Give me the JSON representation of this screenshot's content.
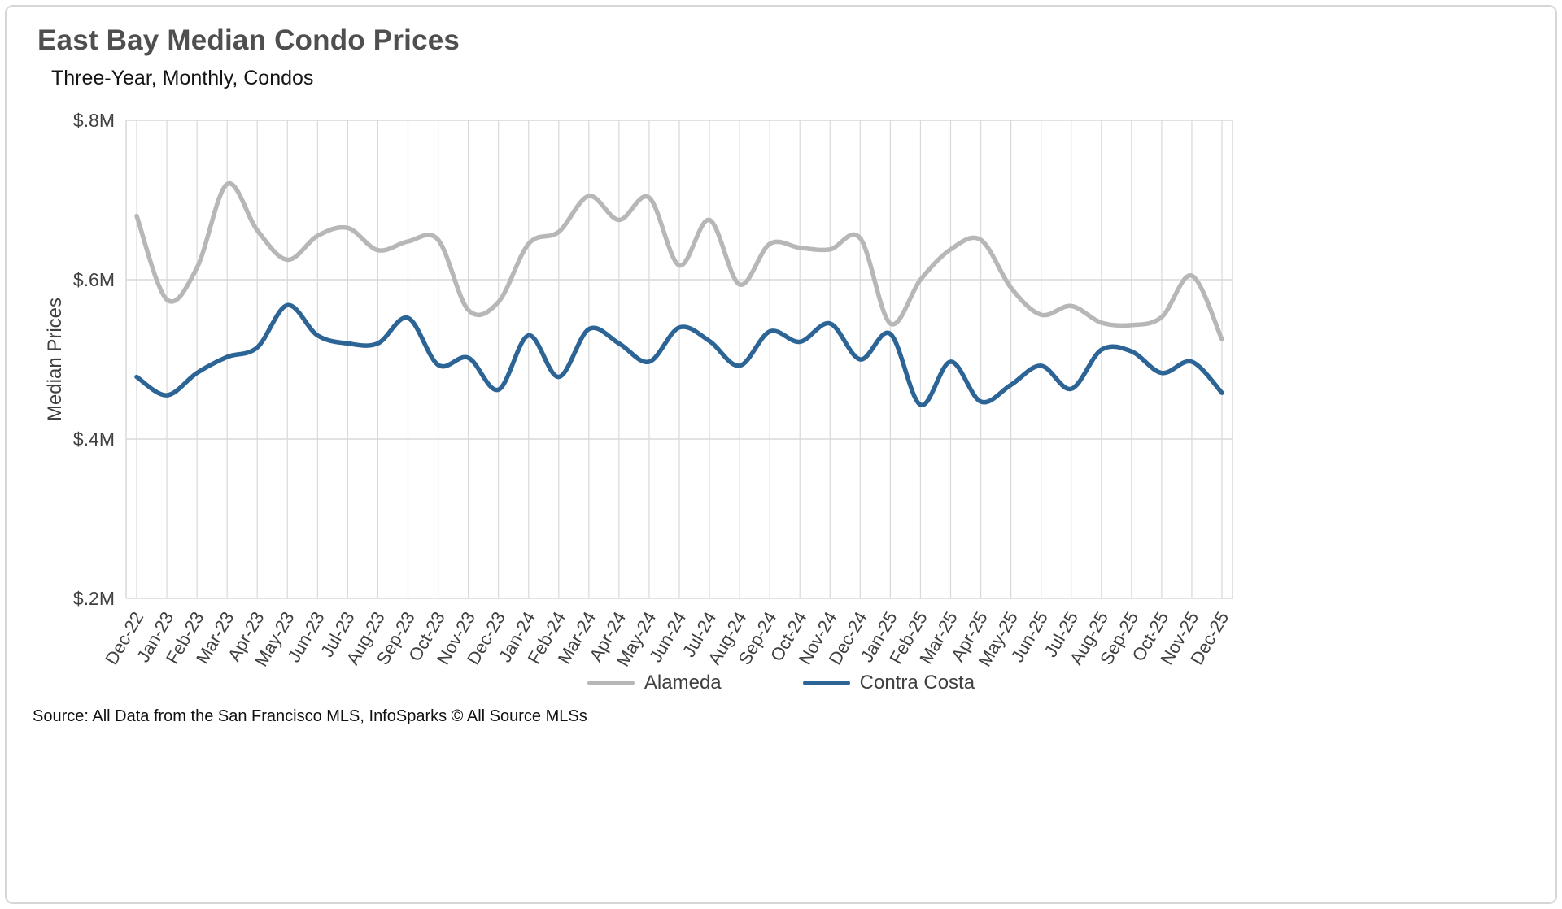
{
  "title": "East Bay Median Condo Prices",
  "subtitle": "Three-Year, Monthly, Condos",
  "source": "Source: All Data from the San Francisco MLS, InfoSparks © All Source MLSs",
  "colors": {
    "alameda_line": "#b7b7b7",
    "contra_costa_line": "#2C6495",
    "grid": "#d9d9d9",
    "axis_text": "#404040",
    "title_text": "#4f4f4f"
  },
  "chart_data": {
    "type": "line",
    "title": "East Bay Median Condo Prices",
    "subtitle": "Three-Year, Monthly, Condos",
    "xlabel": "",
    "ylabel": "Median Prices",
    "units": "$M (millions of dollars)",
    "ylim": [
      0.2,
      0.8
    ],
    "yticks": [
      0.8,
      0.6,
      0.4,
      0.2
    ],
    "ytick_labels": [
      "$.8M",
      "$.6M",
      "$.4M",
      "$.2M"
    ],
    "grid": true,
    "legend_position": "bottom",
    "categories": [
      "Dec-22",
      "Jan-23",
      "Feb-23",
      "Mar-23",
      "Apr-23",
      "May-23",
      "Jun-23",
      "Jul-23",
      "Aug-23",
      "Sep-23",
      "Oct-23",
      "Nov-23",
      "Dec-23",
      "Jan-24",
      "Feb-24",
      "Mar-24",
      "Apr-24",
      "May-24",
      "Jun-24",
      "Jul-24",
      "Aug-24",
      "Sep-24",
      "Oct-24",
      "Nov-24",
      "Dec-24",
      "Jan-25",
      "Feb-25",
      "Mar-25",
      "Apr-25",
      "May-25",
      "Jun-25",
      "Jul-25",
      "Aug-25",
      "Sep-25",
      "Oct-25",
      "Nov-25",
      "Dec-25"
    ],
    "series": [
      {
        "name": "Alameda",
        "color": "#b7b7b7",
        "values": [
          0.68,
          0.575,
          0.615,
          0.72,
          0.662,
          0.625,
          0.655,
          0.665,
          0.637,
          0.648,
          0.65,
          0.562,
          0.572,
          0.645,
          0.66,
          0.705,
          0.675,
          0.703,
          0.618,
          0.675,
          0.594,
          0.645,
          0.64,
          0.638,
          0.652,
          0.545,
          0.6,
          0.638,
          0.65,
          0.59,
          0.556,
          0.567,
          0.546,
          0.543,
          0.553,
          0.605,
          0.525
        ]
      },
      {
        "name": "Contra Costa",
        "color": "#2C6495",
        "values": [
          0.478,
          0.455,
          0.483,
          0.503,
          0.515,
          0.568,
          0.53,
          0.52,
          0.52,
          0.552,
          0.493,
          0.502,
          0.462,
          0.53,
          0.478,
          0.538,
          0.52,
          0.497,
          0.54,
          0.523,
          0.492,
          0.535,
          0.522,
          0.545,
          0.5,
          0.532,
          0.443,
          0.497,
          0.447,
          0.468,
          0.492,
          0.463,
          0.512,
          0.51,
          0.483,
          0.497,
          0.458
        ]
      }
    ]
  }
}
